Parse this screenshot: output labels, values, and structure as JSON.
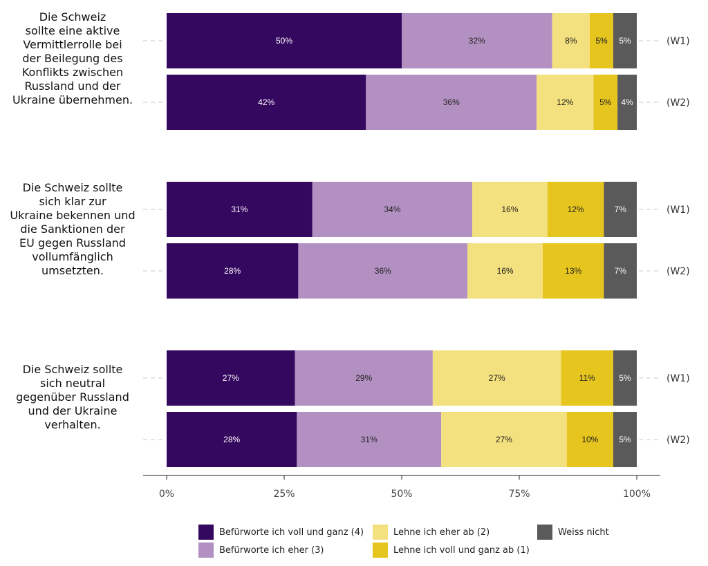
{
  "chart_data": {
    "type": "bar",
    "orientation": "horizontal",
    "stacked": true,
    "xlim": [
      0,
      100
    ],
    "x_ticks": [
      "0%",
      "25%",
      "50%",
      "75%",
      "100%"
    ],
    "grid": false,
    "legend_position": "bottom",
    "categories": [
      {
        "label": "Die Schweiz sollte eine aktive Vermittlerrolle bei der Beilegung des Konflikts zwischen Russland und der Ukraine übernehmen.",
        "lines": [
          "Die Schweiz",
          "sollte eine aktive",
          "Vermittlerrolle bei",
          "der Beilegung des",
          "Konflikts zwischen",
          "Russland und der",
          "Ukraine übernehmen."
        ],
        "waves": [
          {
            "wave": "(W1)",
            "values": [
              50,
              32,
              8,
              5,
              5
            ],
            "labels": [
              "50%",
              "32%",
              "8%",
              "5%",
              "5%"
            ]
          },
          {
            "wave": "(W2)",
            "values": [
              42.4,
              36.3,
              12.1,
              5.1,
              4.1
            ],
            "labels": [
              "42%",
              "36%",
              "12%",
              "5%",
              "4%"
            ]
          }
        ]
      },
      {
        "label": "Die Schweiz sollte sich klar zur Ukraine bekennen und die Sanktionen der EU gegen Russland vollumfänglich umsetzten.",
        "lines": [
          "Die Schweiz sollte",
          "sich klar zur",
          "Ukraine bekennen und",
          "die Sanktionen der",
          "EU gegen Russland",
          "vollumfänglich",
          "umsetzten."
        ],
        "waves": [
          {
            "wave": "(W1)",
            "values": [
              31,
              34,
              16,
              12,
              7
            ],
            "labels": [
              "31%",
              "34%",
              "16%",
              "12%",
              "7%"
            ]
          },
          {
            "wave": "(W2)",
            "values": [
              28,
              36,
              16,
              13,
              7
            ],
            "labels": [
              "28%",
              "36%",
              "16%",
              "13%",
              "7%"
            ]
          }
        ]
      },
      {
        "label": "Die Schweiz sollte sich neutral gegenüber Russland und der Ukraine verhalten.",
        "lines": [
          "Die Schweiz sollte",
          "sich neutral",
          "gegenüber Russland",
          "und der Ukraine",
          "verhalten."
        ],
        "waves": [
          {
            "wave": "(W1)",
            "values": [
              27.3,
              29.3,
              27.3,
              11.1,
              5.0
            ],
            "labels": [
              "27%",
              "29%",
              "27%",
              "11%",
              "5%"
            ]
          },
          {
            "wave": "(W2)",
            "values": [
              27.7,
              30.7,
              26.7,
              9.9,
              5.0
            ],
            "labels": [
              "28%",
              "31%",
              "27%",
              "10%",
              "5%"
            ]
          }
        ]
      }
    ],
    "series": [
      {
        "name": "Befürworte ich voll und ganz (4)",
        "color": "#35085f",
        "label_color": "#ffffff"
      },
      {
        "name": "Befürworte ich eher (3)",
        "color": "#b291c2",
        "label_color": "#222222"
      },
      {
        "name": "Lehne ich eher ab (2)",
        "color": "#f3e07e",
        "label_color": "#222222"
      },
      {
        "name": "Lehne ich voll und ganz ab (1)",
        "color": "#e7c51f",
        "label_color": "#222222"
      },
      {
        "name": "Weiss nicht",
        "color": "#5a5a5a",
        "label_color": "#ffffff"
      }
    ]
  }
}
